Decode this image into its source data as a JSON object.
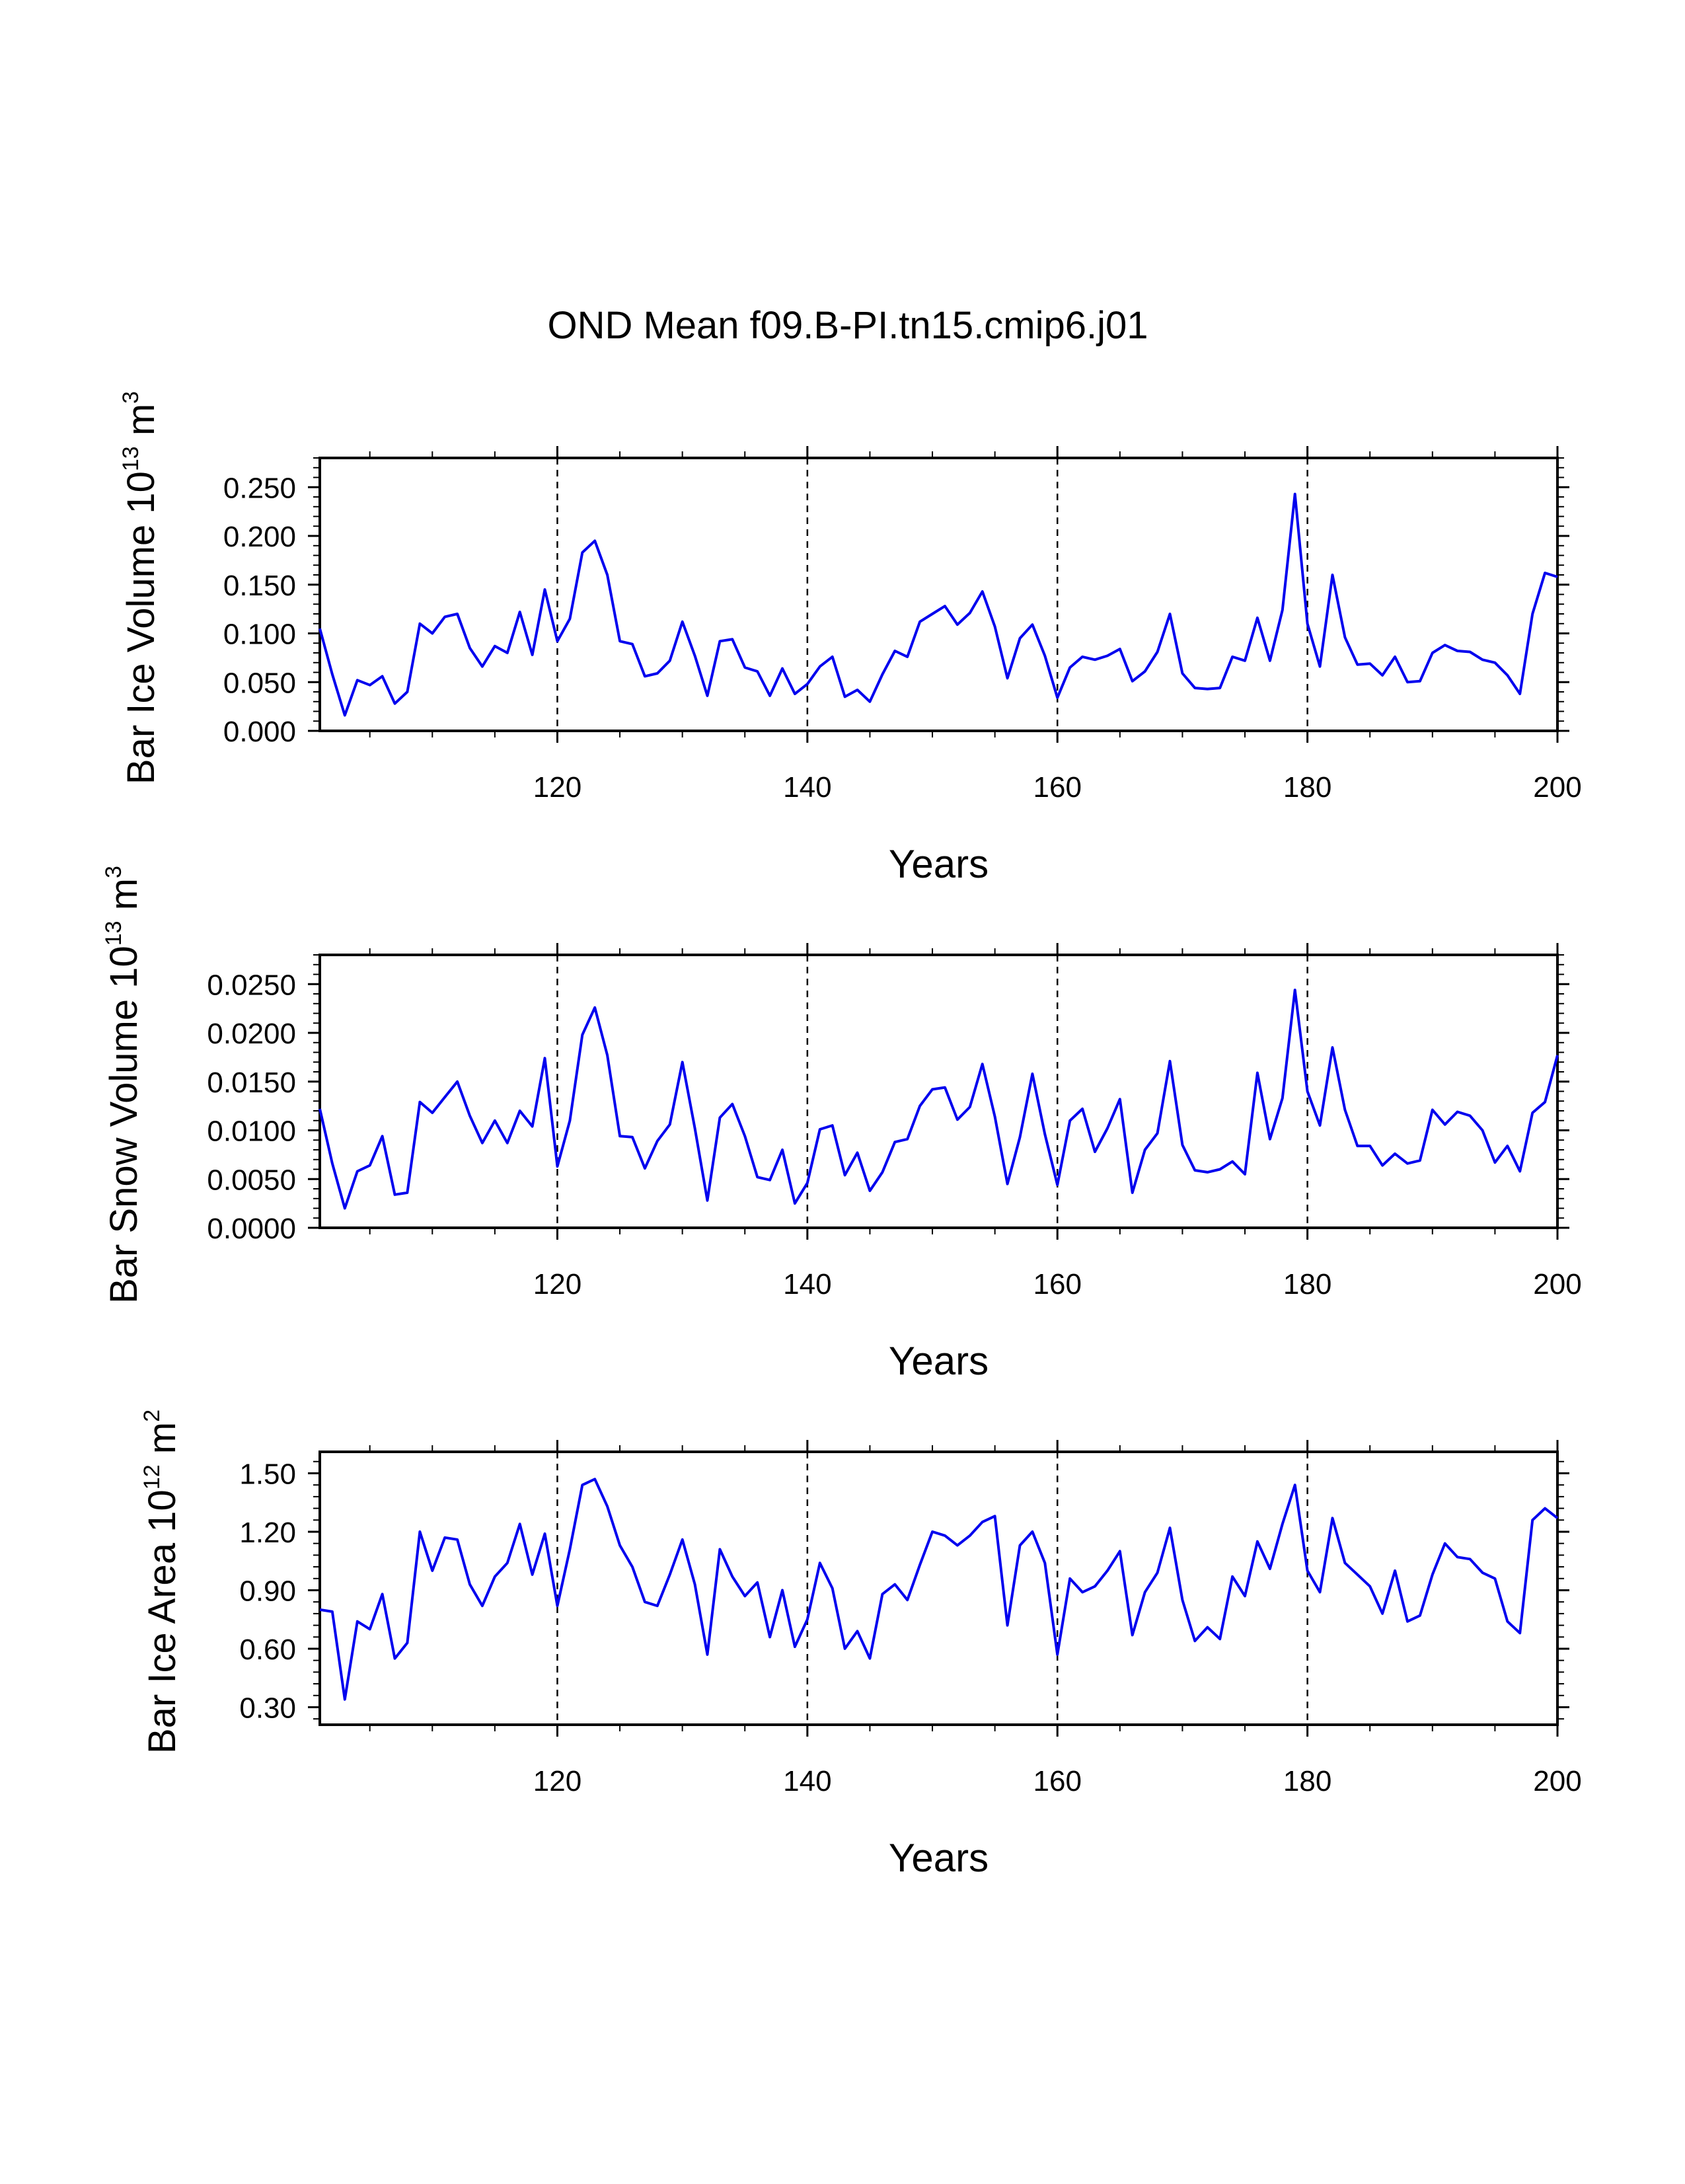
{
  "figure": {
    "title": "OND Mean f09.B-PI.tn15.cmip6.j01"
  },
  "chart_data": [
    {
      "type": "line",
      "ylabel": "Bar Ice Volume 10",
      "yunit_exp": "13",
      "yunit_tail": " m",
      "yunit_pow": "3",
      "xlabel": "Years",
      "xlim": [
        101,
        200
      ],
      "ylim": [
        0.0,
        0.28
      ],
      "yticks": [
        0.0,
        0.05,
        0.1,
        0.15,
        0.2,
        0.25
      ],
      "ytick_labels": [
        "0.000",
        "0.050",
        "0.100",
        "0.150",
        "0.200",
        "0.250"
      ],
      "xticks": [
        120,
        140,
        160,
        180,
        200
      ],
      "xtick_labels": [
        "120",
        "140",
        "160",
        "180",
        "200"
      ],
      "ref_lines": [
        120,
        140,
        160,
        180
      ],
      "color": "#0000ee",
      "x_start": 101,
      "values": [
        0.105,
        0.058,
        0.016,
        0.052,
        0.047,
        0.056,
        0.028,
        0.04,
        0.11,
        0.1,
        0.117,
        0.12,
        0.085,
        0.066,
        0.087,
        0.08,
        0.122,
        0.078,
        0.145,
        0.092,
        0.115,
        0.183,
        0.195,
        0.16,
        0.092,
        0.089,
        0.056,
        0.059,
        0.072,
        0.112,
        0.077,
        0.036,
        0.092,
        0.094,
        0.065,
        0.061,
        0.036,
        0.064,
        0.038,
        0.048,
        0.066,
        0.076,
        0.035,
        0.042,
        0.03,
        0.058,
        0.082,
        0.076,
        0.112,
        0.12,
        0.128,
        0.109,
        0.121,
        0.143,
        0.107,
        0.054,
        0.095,
        0.109,
        0.077,
        0.034,
        0.065,
        0.076,
        0.073,
        0.077,
        0.084,
        0.051,
        0.061,
        0.081,
        0.12,
        0.059,
        0.044,
        0.043,
        0.044,
        0.076,
        0.072,
        0.116,
        0.072,
        0.124,
        0.243,
        0.11,
        0.066,
        0.16,
        0.096,
        0.068,
        0.069,
        0.057,
        0.076,
        0.05,
        0.051,
        0.08,
        0.088,
        0.082,
        0.081,
        0.073,
        0.07,
        0.057,
        0.038,
        0.12,
        0.162,
        0.158
      ]
    },
    {
      "type": "line",
      "ylabel": "Bar Snow Volume 10",
      "yunit_exp": "13",
      "yunit_tail": " m",
      "yunit_pow": "3",
      "xlabel": "Years",
      "xlim": [
        101,
        200
      ],
      "ylim": [
        0.0,
        0.028
      ],
      "yticks": [
        0.0,
        0.005,
        0.01,
        0.015,
        0.02,
        0.025
      ],
      "ytick_labels": [
        "0.0000",
        "0.0050",
        "0.0100",
        "0.0150",
        "0.0200",
        "0.0250"
      ],
      "xticks": [
        120,
        140,
        160,
        180,
        200
      ],
      "xtick_labels": [
        "120",
        "140",
        "160",
        "180",
        "200"
      ],
      "ref_lines": [
        120,
        140,
        160,
        180
      ],
      "color": "#0000ee",
      "x_start": 101,
      "values": [
        0.0122,
        0.0066,
        0.002,
        0.0058,
        0.0064,
        0.0094,
        0.0034,
        0.0036,
        0.0129,
        0.0118,
        0.0134,
        0.015,
        0.0115,
        0.0087,
        0.011,
        0.0087,
        0.012,
        0.0104,
        0.0174,
        0.0063,
        0.011,
        0.0198,
        0.0226,
        0.0177,
        0.0094,
        0.0093,
        0.0061,
        0.0089,
        0.0106,
        0.017,
        0.0102,
        0.0028,
        0.0113,
        0.0127,
        0.0094,
        0.0052,
        0.0049,
        0.008,
        0.0025,
        0.0046,
        0.0101,
        0.0105,
        0.0054,
        0.0077,
        0.0038,
        0.0057,
        0.0088,
        0.0091,
        0.0125,
        0.0142,
        0.0144,
        0.0111,
        0.0124,
        0.0168,
        0.0114,
        0.0045,
        0.0093,
        0.0158,
        0.0096,
        0.0044,
        0.011,
        0.0122,
        0.0078,
        0.0102,
        0.0132,
        0.0036,
        0.008,
        0.0097,
        0.0171,
        0.0085,
        0.0059,
        0.0057,
        0.006,
        0.0068,
        0.0055,
        0.0159,
        0.0091,
        0.0133,
        0.0244,
        0.014,
        0.0105,
        0.0185,
        0.0121,
        0.0084,
        0.0084,
        0.0064,
        0.0076,
        0.0066,
        0.0069,
        0.0121,
        0.0106,
        0.0119,
        0.0115,
        0.01,
        0.0067,
        0.0084,
        0.0058,
        0.0118,
        0.0129,
        0.0177
      ]
    },
    {
      "type": "line",
      "ylabel": "Bar Ice Area 10",
      "yunit_exp": "12",
      "yunit_tail": " m",
      "yunit_pow": "2",
      "xlabel": "Years",
      "xlim": [
        101,
        200
      ],
      "ylim": [
        0.21,
        1.61
      ],
      "yticks": [
        0.3,
        0.6,
        0.9,
        1.2,
        1.5
      ],
      "ytick_labels": [
        "0.30",
        "0.60",
        "0.90",
        "1.20",
        "1.50"
      ],
      "xticks": [
        120,
        140,
        160,
        180,
        200
      ],
      "xtick_labels": [
        "120",
        "140",
        "160",
        "180",
        "200"
      ],
      "ref_lines": [
        120,
        140,
        160,
        180
      ],
      "color": "#0000ee",
      "x_start": 101,
      "values": [
        0.8,
        0.79,
        0.34,
        0.74,
        0.7,
        0.88,
        0.55,
        0.63,
        1.2,
        1.0,
        1.17,
        1.16,
        0.93,
        0.82,
        0.97,
        1.04,
        1.24,
        0.98,
        1.19,
        0.82,
        1.11,
        1.44,
        1.47,
        1.33,
        1.13,
        1.02,
        0.84,
        0.82,
        0.98,
        1.16,
        0.93,
        0.57,
        1.11,
        0.97,
        0.87,
        0.94,
        0.66,
        0.9,
        0.61,
        0.75,
        1.04,
        0.91,
        0.6,
        0.69,
        0.55,
        0.88,
        0.93,
        0.85,
        1.03,
        1.2,
        1.18,
        1.13,
        1.18,
        1.25,
        1.28,
        0.72,
        1.13,
        1.2,
        1.04,
        0.57,
        0.96,
        0.89,
        0.92,
        1.0,
        1.1,
        0.67,
        0.89,
        0.99,
        1.22,
        0.85,
        0.64,
        0.71,
        0.65,
        0.97,
        0.87,
        1.15,
        1.01,
        1.24,
        1.44,
        1.0,
        0.89,
        1.27,
        1.04,
        0.98,
        0.92,
        0.78,
        1.0,
        0.74,
        0.77,
        0.98,
        1.14,
        1.07,
        1.06,
        0.99,
        0.96,
        0.74,
        0.68,
        1.26,
        1.32,
        1.27
      ]
    }
  ]
}
